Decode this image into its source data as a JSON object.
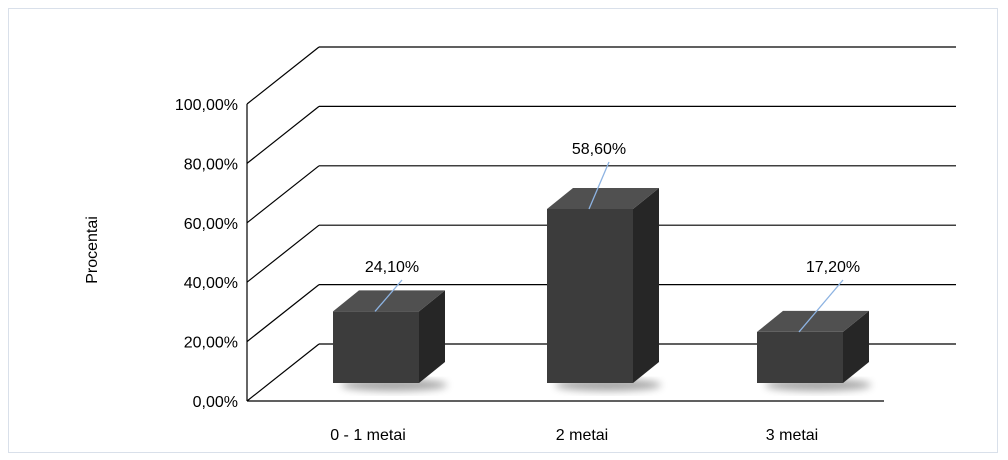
{
  "chart_data": {
    "type": "bar",
    "categories": [
      "0 - 1 metai",
      "2 metai",
      "3 metai"
    ],
    "values": [
      24.1,
      58.6,
      17.2
    ],
    "data_labels": [
      "24,10%",
      "58,60%",
      "17,20%"
    ],
    "title": "",
    "xlabel": "",
    "ylabel": "Procentai",
    "ylim": [
      0,
      100
    ],
    "y_ticks": [
      "0,00%",
      "20,00%",
      "40,00%",
      "60,00%",
      "80,00%",
      "100,00%"
    ],
    "y_tick_values": [
      0,
      20,
      40,
      60,
      80,
      100
    ],
    "three_d": true,
    "grid": true,
    "bar_color": "#3c3c3c",
    "leader_line_color": "#8db3e2"
  }
}
